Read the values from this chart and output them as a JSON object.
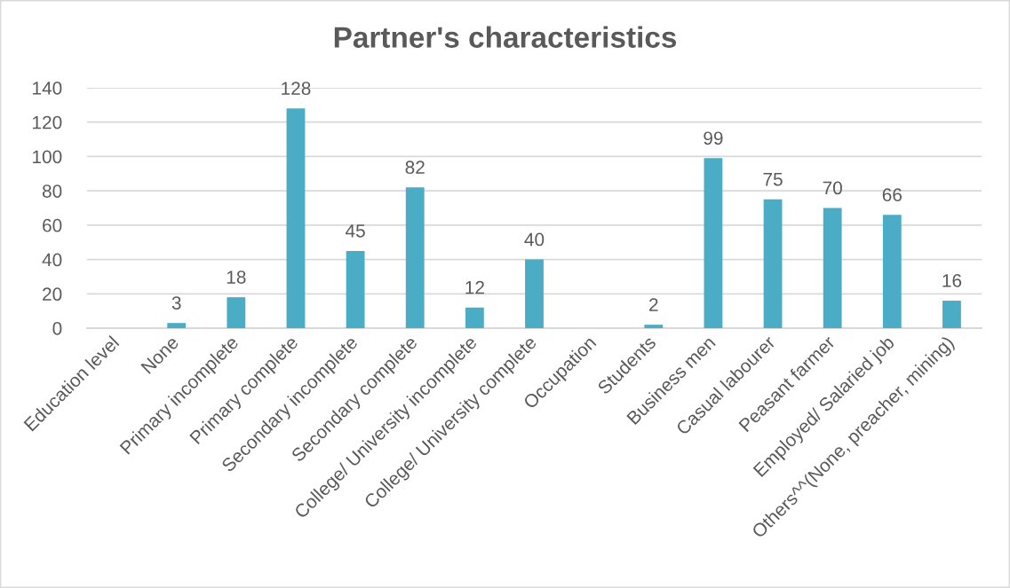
{
  "chart_data": {
    "type": "bar",
    "title": "Partner's characteristics",
    "categories": [
      "Education level",
      "None",
      "Primary incomplete",
      "Primary complete",
      "Secondary incomplete",
      "Secondary complete",
      "College/ University incomplete",
      "College/ University complete",
      "Occupation",
      "Students",
      "Business men",
      "Casual labourer",
      "Peasant farmer",
      "Employed/ Salaried job",
      "Others^^(None, preacher, mining)"
    ],
    "values": [
      null,
      3,
      18,
      128,
      45,
      82,
      12,
      40,
      null,
      2,
      99,
      75,
      70,
      66,
      16
    ],
    "color": "#4bacc6",
    "ylim": [
      0,
      140
    ],
    "yticks": [
      0,
      20,
      40,
      60,
      80,
      100,
      120,
      140
    ],
    "grid": "y",
    "data_labels": true
  }
}
